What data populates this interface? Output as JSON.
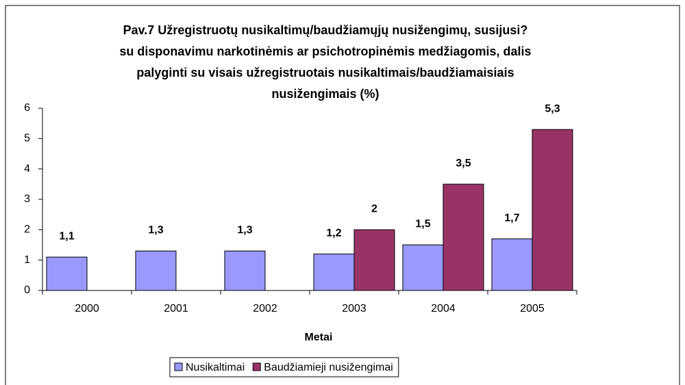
{
  "chart_data": {
    "type": "bar",
    "title": [
      "Pav.7 Užregistruotų nusikaltimų/baudžiamųjų nusižengimų, susijusi?",
      "su disponavimu narkotinėmis ar psichotropinėmis medžiagomis, dalis",
      "palyginti su visais užregistruotais nusikaltimais/baudžiamaisiais",
      "nusižengimais (%)"
    ],
    "x_label": "Metai",
    "categories": [
      "2000",
      "2001",
      "2002",
      "2003",
      "2004",
      "2005"
    ],
    "series": [
      {
        "name": "Nusikaltimai",
        "color": "#9999ff",
        "values": [
          1.1,
          1.3,
          1.3,
          1.2,
          1.5,
          1.7
        ],
        "value_labels": [
          "1,1",
          "1,3",
          "1,3",
          "1,2",
          "1,5",
          "1,7"
        ]
      },
      {
        "name": "Baudžiamieji nusižengimai",
        "color": "#993366",
        "values": [
          null,
          null,
          null,
          2,
          3.5,
          5.3
        ],
        "value_labels": [
          null,
          null,
          null,
          "2",
          "3,5",
          "5,3"
        ]
      }
    ],
    "ylim": [
      0,
      6
    ],
    "yticks": [
      0,
      1,
      2,
      3,
      4,
      5,
      6
    ],
    "legend": "bottom"
  }
}
